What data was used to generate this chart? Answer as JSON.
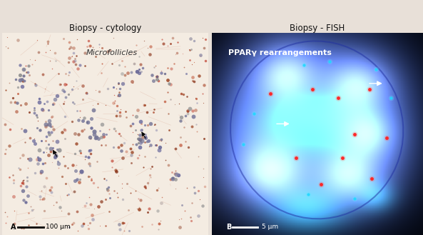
{
  "title_left": "Biopsy - cytology",
  "title_right": "Biopsy - FISH",
  "label_left": "Microfollicles",
  "label_right": "PPARγ rearrangements",
  "scale_left": "100 μm",
  "scale_right": "5 μm",
  "panel_a": "A",
  "panel_b": "B",
  "fig_width": 5.93,
  "fig_height": 3.29,
  "dpi": 100
}
